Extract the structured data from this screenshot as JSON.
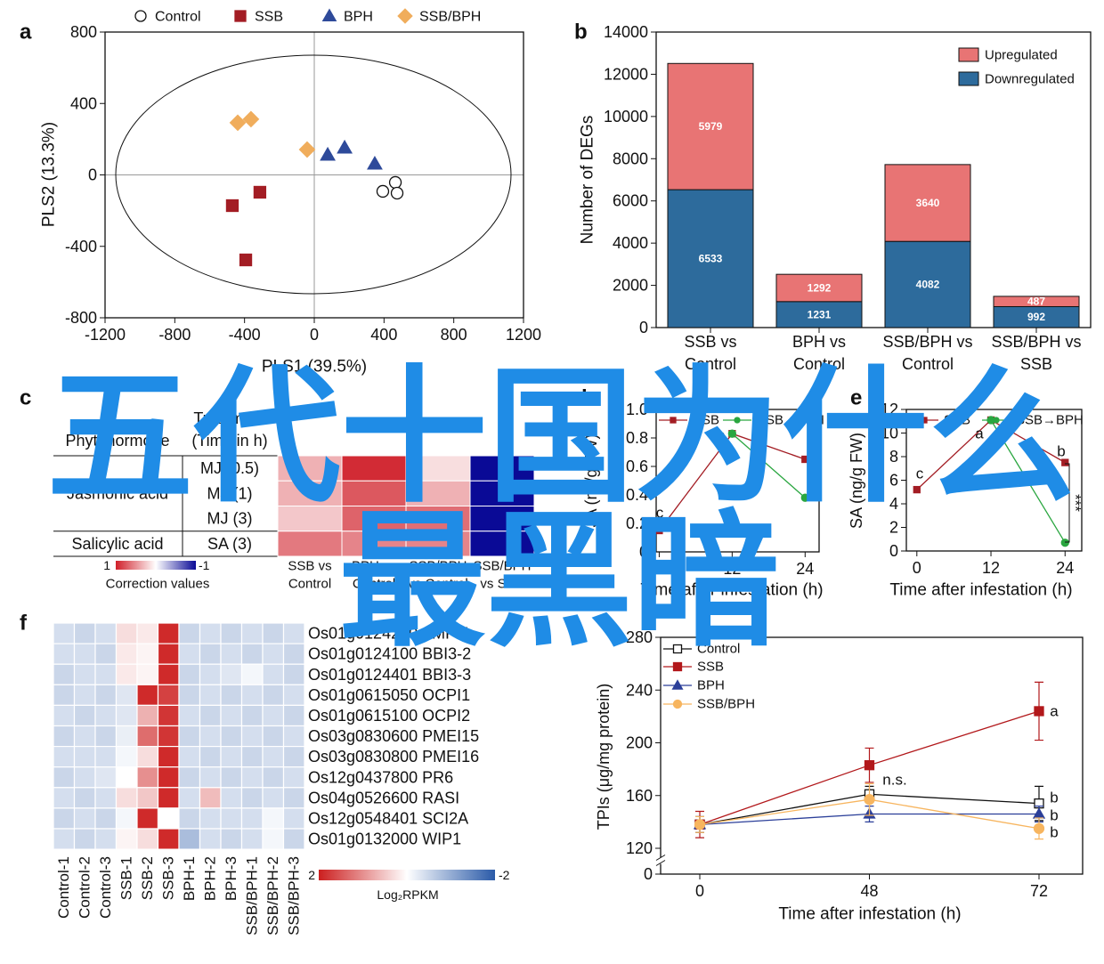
{
  "chart_data": [
    {
      "type": "scatter",
      "label": "a",
      "xlabel": "PLS1 (39.5%)",
      "ylabel": "PLS2 (13.3%)",
      "xlim": [
        -1200,
        1200
      ],
      "ylim": [
        -800,
        800
      ],
      "xticks": [
        -1200,
        -800,
        -400,
        0,
        400,
        800,
        1200
      ],
      "yticks": [
        -800,
        -400,
        0,
        400,
        800
      ],
      "zero_lines": true,
      "series": [
        {
          "name": "Control",
          "marker": "circle",
          "filled": false,
          "color": "#111111",
          "x": [
            465,
            393,
            475
          ],
          "y": [
            -42,
            -92,
            -102
          ]
        },
        {
          "name": "SSB",
          "marker": "square",
          "filled": true,
          "color": "#a31d24",
          "x": [
            -470,
            -312,
            -393
          ],
          "y": [
            -172,
            -97,
            -476
          ]
        },
        {
          "name": "BPH",
          "marker": "triangle",
          "filled": true,
          "color": "#2e4a9a",
          "x": [
            77,
            174,
            347
          ],
          "y": [
            112,
            152,
            62
          ]
        },
        {
          "name": "SSB/BPH",
          "marker": "diamond",
          "filled": true,
          "color": "#f0ad5c",
          "x": [
            -439,
            -363,
            -41
          ],
          "y": [
            292,
            312,
            142
          ]
        }
      ]
    },
    {
      "type": "stacked_bar",
      "label": "b",
      "ylabel": "Number of DEGs",
      "categories": [
        [
          "SSB vs",
          "Control"
        ],
        [
          "BPH vs",
          "Control"
        ],
        [
          "SSB/BPH vs",
          "Control"
        ],
        [
          "SSB/BPH vs",
          "SSB"
        ]
      ],
      "ylim": [
        0,
        14000
      ],
      "yticks": [
        0,
        2000,
        4000,
        6000,
        8000,
        10000,
        12000,
        14000
      ],
      "legend": "top-right",
      "series": [
        {
          "name": "Upregulated",
          "color": "#e87474",
          "values": [
            5979,
            1292,
            3640,
            487
          ]
        },
        {
          "name": "Downregulated",
          "color": "#2d6b9c",
          "values": [
            6533,
            1231,
            4082,
            992
          ]
        }
      ]
    },
    {
      "type": "heatmap_table",
      "label": "c",
      "header_group": "Phytohormone",
      "header_treatment": [
        "Treatment",
        "(Time in h)"
      ],
      "groups": [
        {
          "name": "Jasmonic acid",
          "treatments": [
            "MJ (0.5)",
            "MJ (1)",
            "MJ (3)"
          ]
        },
        {
          "name": "Salicylic acid",
          "treatments": [
            "SA (3)"
          ]
        }
      ],
      "columns": [
        [
          "SSB vs",
          "Control"
        ],
        [
          "BPH vs",
          "Control"
        ],
        [
          "SSB/BPH",
          "vs Control"
        ],
        [
          "SSB/BPH",
          "vs SSB"
        ]
      ],
      "values": [
        [
          0.35,
          0.95,
          0.15,
          -1
        ],
        [
          0.35,
          0.75,
          0.35,
          -1
        ],
        [
          0.25,
          0.7,
          0.65,
          -1
        ],
        [
          0.6,
          0.55,
          0.55,
          -1
        ]
      ],
      "colormap": [
        "#0a0a96",
        "#ffffff",
        "#d0202a"
      ],
      "colorbar_ticks": [
        1,
        -1
      ],
      "colorbar_label": "Correction values"
    },
    {
      "type": "line",
      "label": "d",
      "xlabel": "Time after infestation (h)",
      "ylabel": "JA (ng/g FW)",
      "xlim": [
        -0.5,
        26.3
      ],
      "xticks": [
        0,
        12,
        24
      ],
      "ylim": [
        0,
        1.0
      ],
      "yticks": [
        0,
        0.2,
        0.4,
        0.6,
        0.8,
        {
          "value": 1.0,
          "label": "1.0"
        }
      ],
      "x": [
        0,
        12,
        24
      ],
      "series": [
        {
          "name": "SSB",
          "marker": "square",
          "filled": true,
          "color": "#a31d24",
          "values": [
            0.15,
            0.83,
            0.65
          ]
        },
        {
          "name": "SSB→BPH",
          "marker": "circle",
          "filled": true,
          "color": "#2aa640",
          "values": [
            null,
            0.83,
            0.38
          ]
        }
      ],
      "annotations": [
        "c",
        "a",
        "*"
      ]
    },
    {
      "type": "line",
      "label": "e",
      "xlabel": "Time after infestation (h)",
      "ylabel": "SA (ng/g FW)",
      "xlim": [
        -1.7,
        26.7
      ],
      "xticks": [
        0,
        12,
        24
      ],
      "ylim": [
        0,
        12
      ],
      "yticks": [
        0,
        2,
        4,
        6,
        8,
        10,
        12
      ],
      "x": [
        0,
        12,
        24
      ],
      "series": [
        {
          "name": "SSB",
          "marker": "square",
          "filled": true,
          "color": "#a31d24",
          "values": [
            5.2,
            11.1,
            7.5
          ]
        },
        {
          "name": "SSB→BPH",
          "marker": "circle",
          "filled": true,
          "color": "#2aa640",
          "values": [
            null,
            11.1,
            0.7
          ]
        }
      ],
      "annotations": [
        "c",
        "a",
        "b",
        "***"
      ]
    },
    {
      "type": "heatmap",
      "label": "f",
      "columns": [
        "Control-1",
        "Control-2",
        "Control-3",
        "SSB-1",
        "SSB-2",
        "SSB-3",
        "BPH-1",
        "BPH-2",
        "BPH-3",
        "SSB/BPH-1",
        "SSB/BPH-2",
        "SSB/BPH-3"
      ],
      "rows": [
        "Os01g0124200 AMPI4",
        "Os01g0124100 BBI3-2",
        "Os01g0124401 BBI3-3",
        "Os01g0615050 OCPI1",
        "Os01g0615100 OCPI2",
        "Os03g0830600 PMEI15",
        "Os03g0830800 PMEI16",
        "Os12g0437800 PR6",
        "Os04g0526600 RASI",
        "Os12g0548401 SCI2A",
        "Os01g0132000 WIP1"
      ],
      "values": [
        [
          -0.4,
          -0.5,
          -0.4,
          0.3,
          0.2,
          1.9,
          -0.5,
          -0.4,
          -0.5,
          -0.4,
          -0.5,
          -0.4
        ],
        [
          -0.4,
          -0.4,
          -0.5,
          0.2,
          0.1,
          1.9,
          -0.4,
          -0.5,
          -0.4,
          -0.5,
          -0.4,
          -0.5
        ],
        [
          -0.5,
          -0.4,
          -0.4,
          0.2,
          0.1,
          1.9,
          -0.5,
          -0.4,
          -0.3,
          -0.1,
          -0.4,
          -0.5
        ],
        [
          -0.5,
          -0.4,
          -0.5,
          -0.3,
          1.9,
          1.7,
          -0.5,
          -0.4,
          -0.5,
          -0.4,
          -0.5,
          -0.4
        ],
        [
          -0.4,
          -0.5,
          -0.4,
          -0.3,
          0.7,
          1.8,
          -0.4,
          -0.5,
          -0.4,
          -0.5,
          -0.4,
          -0.5
        ],
        [
          -0.5,
          -0.4,
          -0.5,
          -0.2,
          1.3,
          1.8,
          -0.5,
          -0.4,
          -0.5,
          -0.4,
          -0.5,
          -0.4
        ],
        [
          -0.4,
          -0.4,
          -0.4,
          -0.1,
          0.3,
          1.9,
          -0.4,
          -0.5,
          -0.4,
          -0.5,
          -0.4,
          -0.5
        ],
        [
          -0.5,
          -0.4,
          -0.3,
          0.0,
          1.0,
          1.9,
          -0.5,
          -0.4,
          -0.5,
          -0.4,
          -0.5,
          -0.4
        ],
        [
          -0.4,
          -0.5,
          -0.4,
          0.3,
          0.5,
          1.9,
          -0.4,
          0.6,
          -0.4,
          -0.5,
          -0.4,
          -0.5
        ],
        [
          -0.5,
          -0.4,
          -0.5,
          -0.1,
          1.9,
          0.0,
          -0.5,
          -0.4,
          -0.4,
          -0.4,
          -0.1,
          -0.4
        ],
        [
          -0.4,
          -0.5,
          -0.4,
          0.1,
          0.3,
          1.9,
          -0.8,
          -0.4,
          -0.5,
          -0.4,
          -0.1,
          -0.5
        ]
      ],
      "colormap": [
        "#2a5aa8",
        "#ffffff",
        "#cc1f1f"
      ],
      "colorbar_ticks": [
        2,
        -2
      ],
      "colorbar_label": "Log₂RPKM"
    },
    {
      "type": "line",
      "xlabel": "Time after infestation (h)",
      "ylabel": "TPIs (μg/mg protein)",
      "categories": [
        "0",
        "48",
        "72"
      ],
      "ylim": [
        0,
        280
      ],
      "yticks": [
        0,
        120,
        160,
        200,
        240,
        280
      ],
      "axis_break": [
        0,
        120
      ],
      "series": [
        {
          "name": "Control",
          "marker": "square",
          "filled": false,
          "color": "#111111",
          "values": [
            138,
            161,
            154
          ],
          "errors": [
            6,
            6,
            13
          ]
        },
        {
          "name": "SSB",
          "marker": "square",
          "filled": true,
          "color": "#b2181b",
          "values": [
            138,
            183,
            224
          ],
          "errors": [
            10,
            13,
            22
          ]
        },
        {
          "name": "BPH",
          "marker": "triangle",
          "filled": true,
          "color": "#2b3f99",
          "values": [
            138,
            146,
            146
          ],
          "errors": [
            6,
            6,
            6
          ]
        },
        {
          "name": "SSB/BPH",
          "marker": "circle",
          "filled": true,
          "color": "#f7b55f",
          "values": [
            138,
            157,
            135
          ],
          "errors": [
            6,
            12,
            8
          ]
        }
      ],
      "annotations": [
        "n.s.",
        "a",
        "b",
        "b",
        "b"
      ]
    }
  ],
  "overlay": [
    "五代十国为什么",
    "最黑暗"
  ]
}
